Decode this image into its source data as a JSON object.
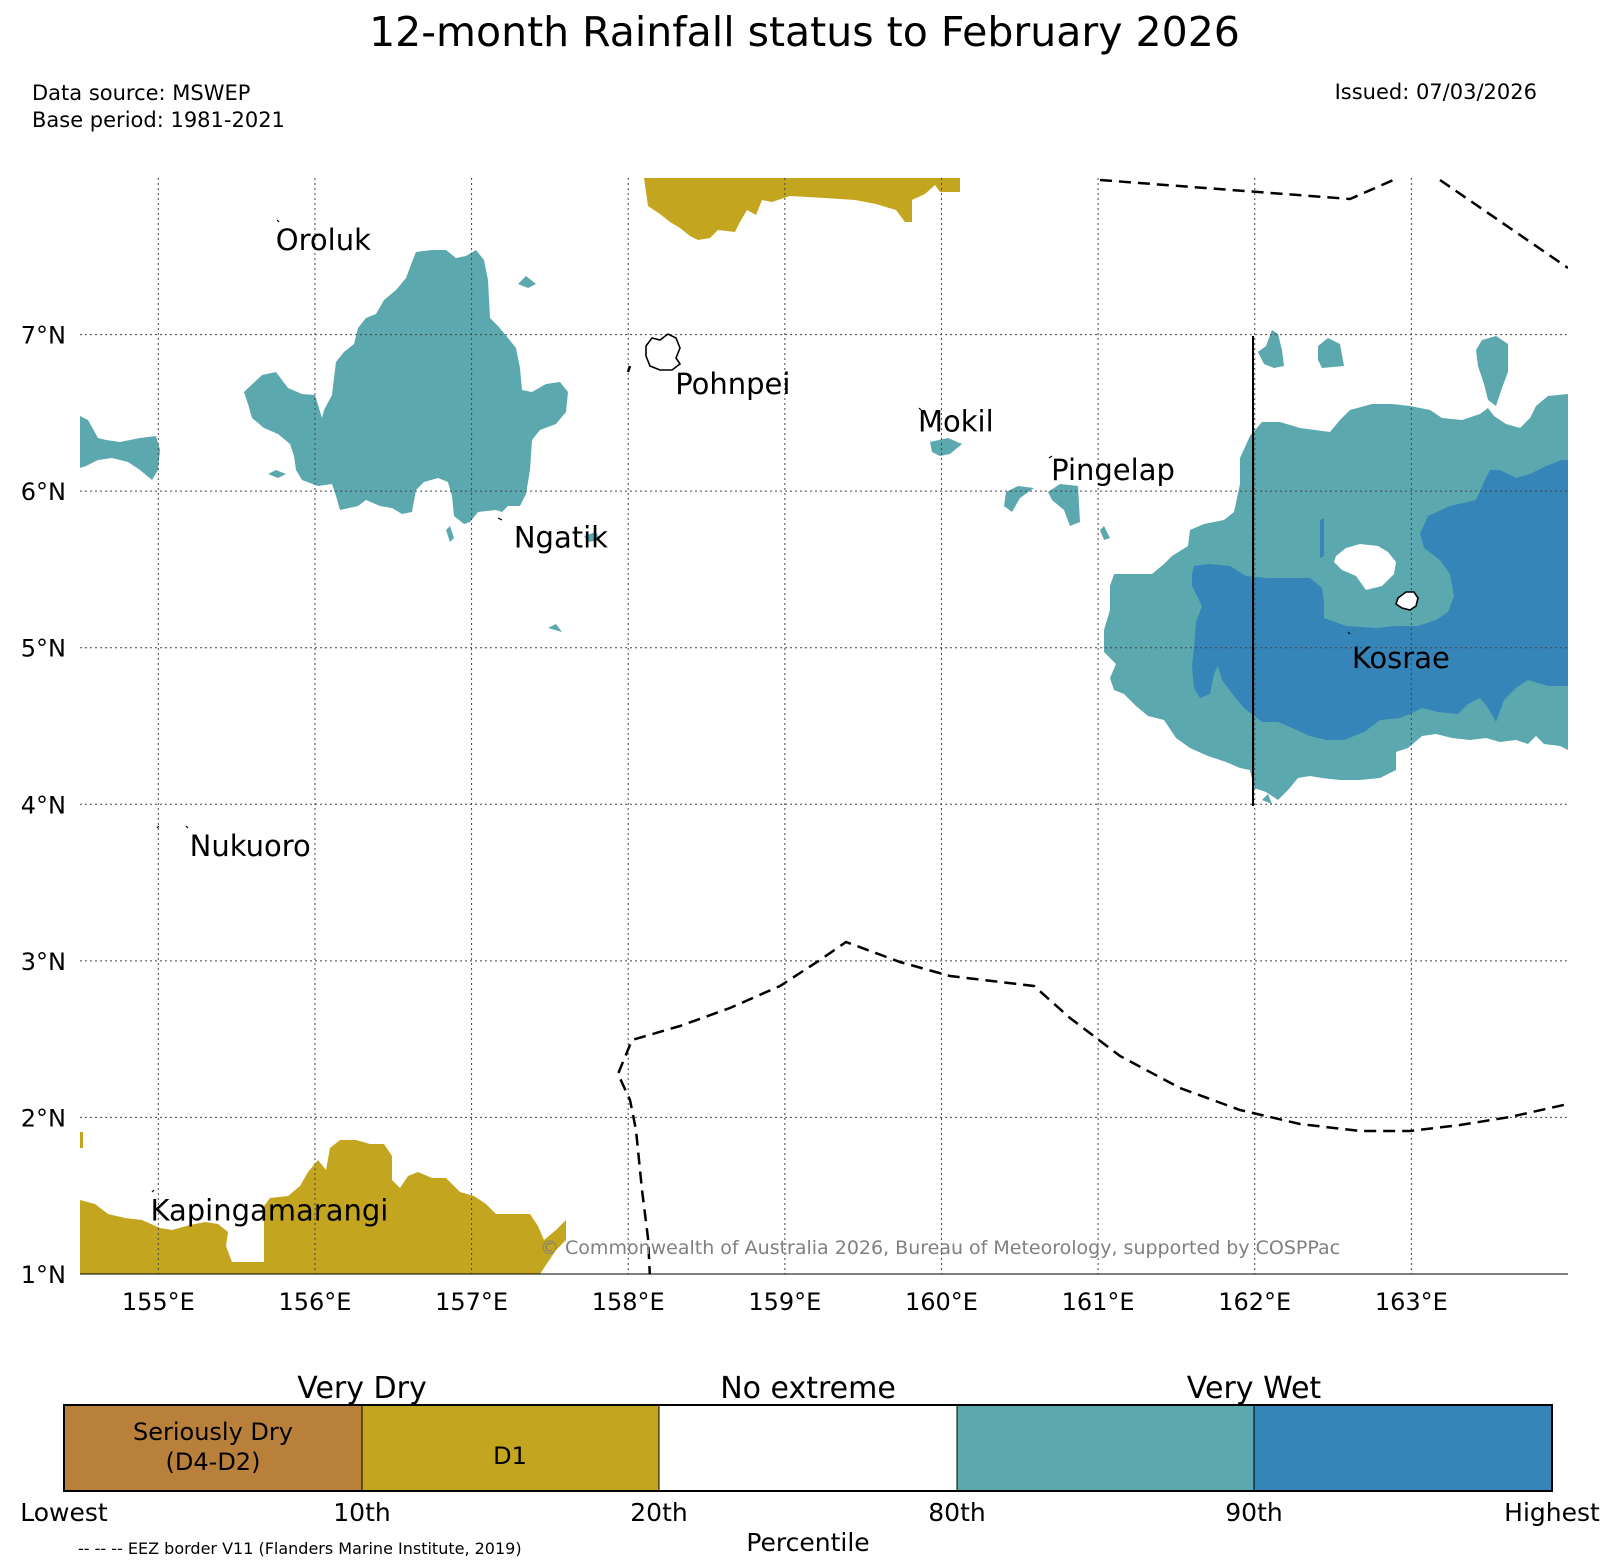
{
  "title": "12-month Rainfall status to February 2026",
  "data_source": "Data source: MSWEP",
  "base_period": "Base period: 1981-2021",
  "issued": "Issued: 07/03/2026",
  "map": {
    "lon_range": [
      154.5,
      164.0
    ],
    "lat_range": [
      1.0,
      8.0
    ],
    "lon_ticks": [
      155,
      156,
      157,
      158,
      159,
      160,
      161,
      162,
      163
    ],
    "lon_tick_labels": [
      "155°E",
      "156°E",
      "157°E",
      "158°E",
      "159°E",
      "160°E",
      "161°E",
      "162°E",
      "163°E"
    ],
    "lat_ticks": [
      1,
      2,
      3,
      4,
      5,
      6,
      7
    ],
    "lat_tick_labels": [
      "1°N",
      "2°N",
      "3°N",
      "4°N",
      "5°N",
      "6°N",
      "7°N"
    ],
    "places": [
      {
        "name": "Oroluk",
        "lon": 155.75,
        "lat": 7.72
      },
      {
        "name": "Pohnpei",
        "lon": 158.3,
        "lat": 6.8
      },
      {
        "name": "Mokil",
        "lon": 159.85,
        "lat": 6.56
      },
      {
        "name": "Pingelap",
        "lon": 160.7,
        "lat": 6.25
      },
      {
        "name": "Ngatik",
        "lon": 157.27,
        "lat": 5.82
      },
      {
        "name": "Kosrae",
        "lon": 162.62,
        "lat": 5.05
      },
      {
        "name": "Nukuoro",
        "lon": 155.2,
        "lat": 3.85
      },
      {
        "name": "Kapingamarangi",
        "lon": 154.95,
        "lat": 1.52
      }
    ],
    "copyright": "© Commonwealth of Australia 2026, Bureau of Meteorology, supported by COSPPac"
  },
  "colors": {
    "seriously_dry": "#b8803a",
    "d1": "#c4a51f",
    "no_extreme": "#ffffff",
    "wet_80_90": "#5ba8ae",
    "wet_90_highest": "#3585b9"
  },
  "colorbar": {
    "group_labels": [
      "Very Dry",
      "No extreme",
      "Very Wet"
    ],
    "segments": [
      {
        "label_line1": "Seriously Dry",
        "label_line2": "(D4-D2)",
        "color": "#b8803a"
      },
      {
        "label_line1": "D1",
        "label_line2": "",
        "color": "#c4a51f"
      },
      {
        "label_line1": "",
        "label_line2": "",
        "color": "#ffffff"
      },
      {
        "label_line1": "",
        "label_line2": "",
        "color": "#5ba8ae"
      },
      {
        "label_line1": "",
        "label_line2": "",
        "color": "#3585b9"
      }
    ],
    "tick_labels": [
      "Lowest",
      "10th",
      "20th",
      "80th",
      "90th",
      "Highest"
    ],
    "axis_label": "Percentile"
  },
  "footnote": "-- -- -- EEZ border V11 (Flanders Marine Institute, 2019)"
}
